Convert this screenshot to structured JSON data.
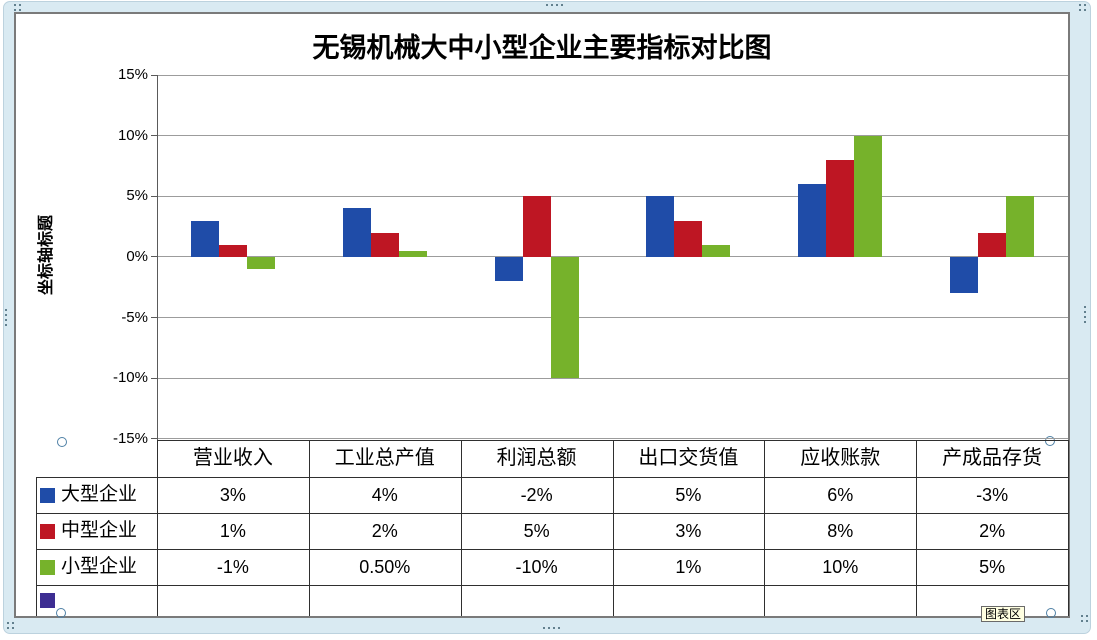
{
  "chart": {
    "title": "无锡机械大中小型企业主要指标对比图",
    "axis_title": "坐标轴标题",
    "tooltip_label": "图表区"
  },
  "chart_data": {
    "type": "bar",
    "title": "无锡机械大中小型企业主要指标对比图",
    "ylabel": "坐标轴标题",
    "categories": [
      "营业收入",
      "工业总产值",
      "利润总额",
      "出口交货值",
      "应收账款",
      "产成品存货"
    ],
    "series": [
      {
        "name": "大型企业",
        "color": "#1f4ca8",
        "values": [
          3,
          4,
          -2,
          5,
          6,
          -3
        ],
        "display": [
          "3%",
          "4%",
          "-2%",
          "5%",
          "6%",
          "-3%"
        ]
      },
      {
        "name": "中型企业",
        "color": "#be1623",
        "values": [
          1,
          2,
          5,
          3,
          8,
          2
        ],
        "display": [
          "1%",
          "2%",
          "5%",
          "3%",
          "8%",
          "2%"
        ]
      },
      {
        "name": "小型企业",
        "color": "#76b22b",
        "values": [
          -1,
          0.5,
          -10,
          1,
          10,
          5
        ],
        "display": [
          "-1%",
          "0.50%",
          "-10%",
          "1%",
          "10%",
          "5%"
        ]
      }
    ],
    "extra_legend_color": "#3d2d92",
    "ylim": [
      -15,
      15
    ],
    "ytick_step": 5,
    "yticks": [
      "15%",
      "10%",
      "5%",
      "0%",
      "-5%",
      "-10%",
      "-15%"
    ],
    "grid": true,
    "legend_position": "left-of-data-table",
    "data_table_shown": true
  }
}
